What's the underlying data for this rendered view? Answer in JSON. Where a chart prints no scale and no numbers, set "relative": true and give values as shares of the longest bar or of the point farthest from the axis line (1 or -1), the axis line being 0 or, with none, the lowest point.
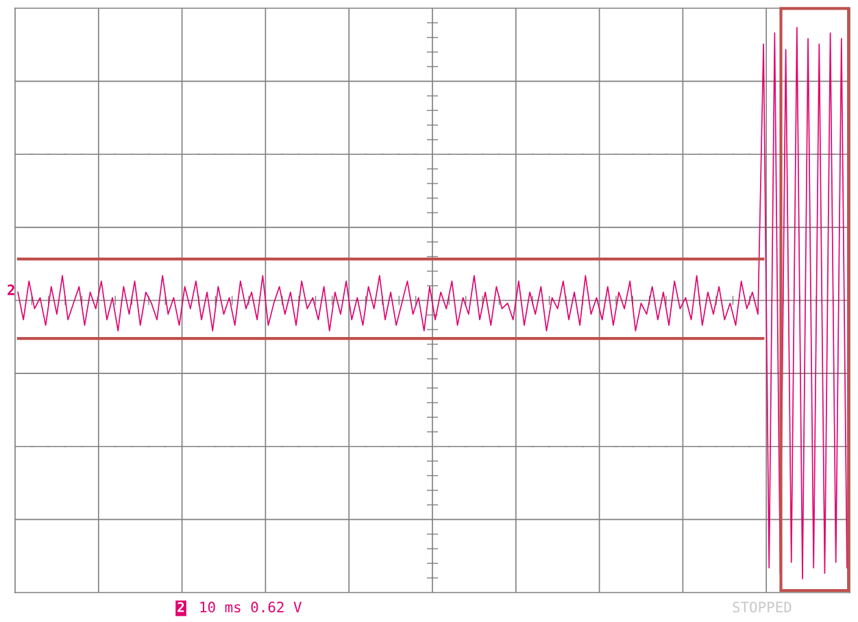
{
  "chart_data": {
    "type": "line",
    "relative": true,
    "grid": true,
    "ref_lines": [
      {
        "axis": "y",
        "value": 0.58,
        "color": "#c0504d"
      },
      {
        "axis": "y",
        "value": 0.436,
        "color": "#c0504d"
      }
    ],
    "marker": "none",
    "line_style": "solid",
    "categories": [
      null,
      null,
      null,
      null,
      null,
      null,
      null,
      null,
      null,
      null,
      null,
      null,
      null,
      null,
      null,
      null,
      null,
      null,
      null,
      null,
      null,
      null,
      null,
      null,
      null,
      null,
      null,
      null,
      null,
      null,
      null,
      null,
      null,
      null,
      null,
      null,
      null,
      null,
      null,
      null,
      null,
      null,
      null,
      null,
      null,
      null,
      null,
      null,
      null,
      null,
      null,
      null,
      null,
      null,
      null,
      null,
      null,
      null,
      null,
      null,
      null,
      null,
      null,
      null,
      null,
      null,
      null,
      null,
      null,
      null,
      null,
      null,
      null,
      null,
      null,
      null,
      null,
      null,
      null,
      null,
      null,
      null,
      null,
      null,
      null,
      null,
      null,
      null,
      null,
      null,
      null,
      null,
      null,
      null,
      null,
      null,
      null,
      null,
      null,
      null,
      null,
      null,
      null,
      null,
      null,
      null,
      null,
      null,
      null,
      null,
      null,
      null,
      null,
      null,
      null,
      null,
      null,
      null,
      null,
      null,
      null,
      null,
      null,
      null,
      null,
      null,
      null,
      null,
      null,
      null,
      null,
      null,
      null,
      null,
      null,
      null,
      null,
      null,
      null,
      null,
      null,
      null,
      null,
      null,
      null,
      null,
      null,
      null,
      null,
      null
    ],
    "series": [
      {
        "color": "#e0006e",
        "values": [
          0.52,
          0.47,
          0.54,
          0.49,
          0.51,
          0.46,
          0.53,
          0.48,
          0.55,
          0.47,
          0.5,
          0.53,
          0.46,
          0.52,
          0.49,
          0.54,
          0.47,
          0.51,
          0.45,
          0.53,
          0.48,
          0.54,
          0.46,
          0.52,
          0.5,
          0.47,
          0.55,
          0.48,
          0.51,
          0.46,
          0.53,
          0.49,
          0.54,
          0.47,
          0.52,
          0.45,
          0.53,
          0.48,
          0.51,
          0.46,
          0.54,
          0.49,
          0.52,
          0.47,
          0.55,
          0.46,
          0.5,
          0.53,
          0.48,
          0.52,
          0.46,
          0.54,
          0.49,
          0.51,
          0.47,
          0.53,
          0.45,
          0.52,
          0.48,
          0.54,
          0.47,
          0.51,
          0.46,
          0.53,
          0.49,
          0.55,
          0.47,
          0.52,
          0.46,
          0.5,
          0.54,
          0.48,
          0.51,
          0.45,
          0.53,
          0.47,
          0.52,
          0.49,
          0.54,
          0.46,
          0.51,
          0.48,
          0.55,
          0.47,
          0.52,
          0.46,
          0.53,
          0.49,
          0.5,
          0.47,
          0.54,
          0.46,
          0.52,
          0.48,
          0.53,
          0.45,
          0.51,
          0.49,
          0.54,
          0.47,
          0.52,
          0.46,
          0.55,
          0.48,
          0.51,
          0.47,
          0.53,
          0.46,
          0.52,
          0.49,
          0.54,
          0.45,
          0.5,
          0.48,
          0.53,
          0.47,
          0.52,
          0.46,
          0.54,
          0.49,
          0.51,
          0.47,
          0.55,
          0.46,
          0.52,
          0.48,
          0.53,
          0.47,
          0.5,
          0.46,
          0.54,
          0.49,
          0.52,
          0.48,
          0.97,
          0.02,
          0.99,
          0.01,
          0.96,
          0.03,
          1.0,
          0.0,
          0.98,
          0.02,
          0.97,
          0.01,
          0.99,
          0.03,
          0.98,
          0.02
        ]
      }
    ],
    "annotations": [
      "2",
      "2",
      "10 ms 0.62 V",
      "STOPPED"
    ]
  }
}
